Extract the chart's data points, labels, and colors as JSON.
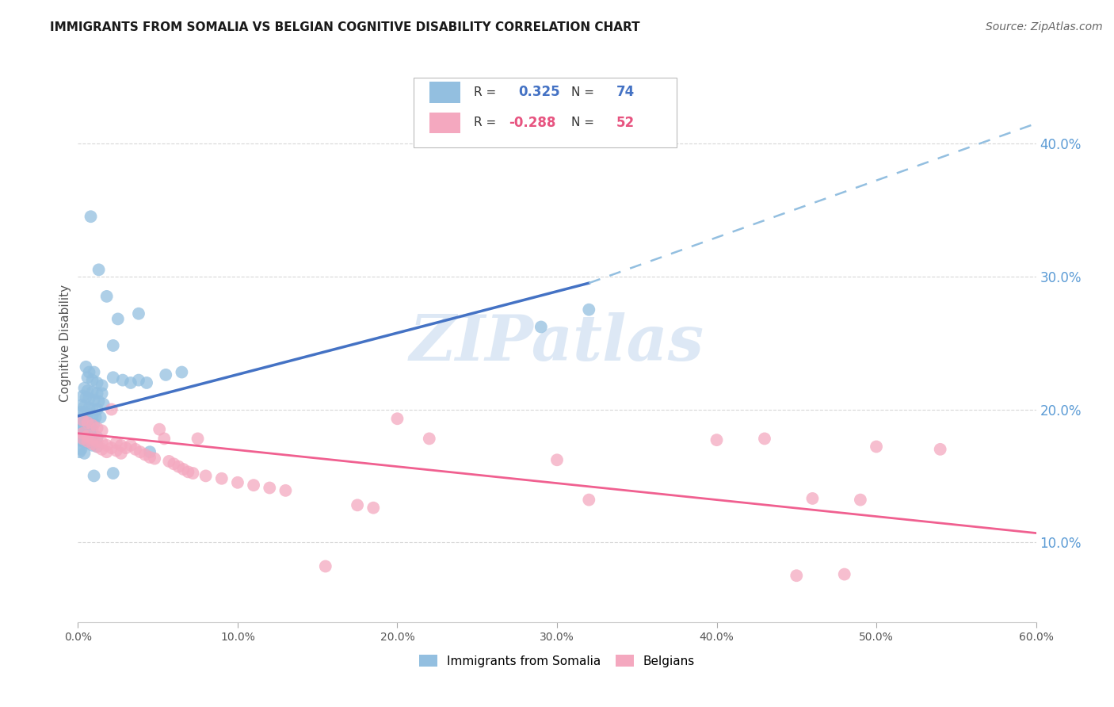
{
  "title": "IMMIGRANTS FROM SOMALIA VS BELGIAN COGNITIVE DISABILITY CORRELATION CHART",
  "source": "Source: ZipAtlas.com",
  "ylabel": "Cognitive Disability",
  "right_yticks": [
    "10.0%",
    "20.0%",
    "30.0%",
    "40.0%"
  ],
  "right_ytick_vals": [
    0.1,
    0.2,
    0.3,
    0.4
  ],
  "xlim": [
    0.0,
    0.6
  ],
  "ylim": [
    0.04,
    0.46
  ],
  "background_color": "#ffffff",
  "grid_color": "#d8d8d8",
  "somalia_dot_color": "#93bfe0",
  "belgian_dot_color": "#f4a8bf",
  "line_blue_solid": "#4472c4",
  "line_blue_dashed": "#93bfe0",
  "line_pink": "#f06090",
  "somalia_line": {
    "x0": 0.0,
    "y0": 0.195,
    "x1": 0.32,
    "y1": 0.295
  },
  "somalia_line_dashed": {
    "x0": 0.32,
    "y0": 0.295,
    "x1": 0.6,
    "y1": 0.415
  },
  "belgian_line": {
    "x0": 0.0,
    "y0": 0.182,
    "x1": 0.6,
    "y1": 0.107
  },
  "somalia_dots": [
    [
      0.008,
      0.345
    ],
    [
      0.013,
      0.305
    ],
    [
      0.018,
      0.285
    ],
    [
      0.022,
      0.248
    ],
    [
      0.005,
      0.232
    ],
    [
      0.007,
      0.228
    ],
    [
      0.01,
      0.228
    ],
    [
      0.006,
      0.224
    ],
    [
      0.009,
      0.222
    ],
    [
      0.012,
      0.22
    ],
    [
      0.015,
      0.218
    ],
    [
      0.004,
      0.216
    ],
    [
      0.006,
      0.214
    ],
    [
      0.009,
      0.213
    ],
    [
      0.012,
      0.212
    ],
    [
      0.015,
      0.212
    ],
    [
      0.003,
      0.21
    ],
    [
      0.005,
      0.209
    ],
    [
      0.007,
      0.208
    ],
    [
      0.01,
      0.207
    ],
    [
      0.013,
      0.206
    ],
    [
      0.016,
      0.204
    ],
    [
      0.002,
      0.203
    ],
    [
      0.004,
      0.202
    ],
    [
      0.007,
      0.201
    ],
    [
      0.009,
      0.2
    ],
    [
      0.012,
      0.2
    ],
    [
      0.002,
      0.198
    ],
    [
      0.004,
      0.197
    ],
    [
      0.006,
      0.196
    ],
    [
      0.009,
      0.195
    ],
    [
      0.011,
      0.194
    ],
    [
      0.014,
      0.194
    ],
    [
      0.002,
      0.192
    ],
    [
      0.004,
      0.191
    ],
    [
      0.007,
      0.19
    ],
    [
      0.01,
      0.189
    ],
    [
      0.001,
      0.188
    ],
    [
      0.003,
      0.187
    ],
    [
      0.006,
      0.186
    ],
    [
      0.009,
      0.185
    ],
    [
      0.001,
      0.183
    ],
    [
      0.003,
      0.182
    ],
    [
      0.006,
      0.181
    ],
    [
      0.009,
      0.18
    ],
    [
      0.012,
      0.179
    ],
    [
      0.001,
      0.177
    ],
    [
      0.003,
      0.176
    ],
    [
      0.006,
      0.175
    ],
    [
      0.009,
      0.173
    ],
    [
      0.012,
      0.172
    ],
    [
      0.002,
      0.17
    ],
    [
      0.001,
      0.168
    ],
    [
      0.004,
      0.167
    ],
    [
      0.022,
      0.224
    ],
    [
      0.028,
      0.222
    ],
    [
      0.033,
      0.22
    ],
    [
      0.038,
      0.222
    ],
    [
      0.043,
      0.22
    ],
    [
      0.055,
      0.226
    ],
    [
      0.065,
      0.228
    ],
    [
      0.025,
      0.268
    ],
    [
      0.038,
      0.272
    ],
    [
      0.022,
      0.152
    ],
    [
      0.01,
      0.15
    ],
    [
      0.29,
      0.262
    ],
    [
      0.32,
      0.275
    ],
    [
      0.045,
      0.168
    ]
  ],
  "belgian_dots": [
    [
      0.003,
      0.192
    ],
    [
      0.006,
      0.19
    ],
    [
      0.009,
      0.188
    ],
    [
      0.012,
      0.186
    ],
    [
      0.015,
      0.184
    ],
    [
      0.003,
      0.182
    ],
    [
      0.006,
      0.18
    ],
    [
      0.009,
      0.178
    ],
    [
      0.012,
      0.176
    ],
    [
      0.015,
      0.175
    ],
    [
      0.018,
      0.173
    ],
    [
      0.021,
      0.171
    ],
    [
      0.024,
      0.169
    ],
    [
      0.027,
      0.167
    ],
    [
      0.003,
      0.178
    ],
    [
      0.006,
      0.176
    ],
    [
      0.009,
      0.174
    ],
    [
      0.012,
      0.172
    ],
    [
      0.015,
      0.17
    ],
    [
      0.018,
      0.168
    ],
    [
      0.021,
      0.2
    ],
    [
      0.024,
      0.175
    ],
    [
      0.027,
      0.173
    ],
    [
      0.03,
      0.171
    ],
    [
      0.033,
      0.173
    ],
    [
      0.036,
      0.17
    ],
    [
      0.039,
      0.168
    ],
    [
      0.042,
      0.166
    ],
    [
      0.045,
      0.164
    ],
    [
      0.048,
      0.163
    ],
    [
      0.051,
      0.185
    ],
    [
      0.054,
      0.178
    ],
    [
      0.057,
      0.161
    ],
    [
      0.06,
      0.159
    ],
    [
      0.063,
      0.157
    ],
    [
      0.066,
      0.155
    ],
    [
      0.069,
      0.153
    ],
    [
      0.072,
      0.152
    ],
    [
      0.075,
      0.178
    ],
    [
      0.08,
      0.15
    ],
    [
      0.09,
      0.148
    ],
    [
      0.1,
      0.145
    ],
    [
      0.11,
      0.143
    ],
    [
      0.12,
      0.141
    ],
    [
      0.13,
      0.139
    ],
    [
      0.155,
      0.082
    ],
    [
      0.175,
      0.128
    ],
    [
      0.185,
      0.126
    ],
    [
      0.2,
      0.193
    ],
    [
      0.22,
      0.178
    ],
    [
      0.3,
      0.162
    ],
    [
      0.32,
      0.132
    ],
    [
      0.4,
      0.177
    ],
    [
      0.43,
      0.178
    ],
    [
      0.46,
      0.133
    ],
    [
      0.49,
      0.132
    ],
    [
      0.5,
      0.172
    ],
    [
      0.54,
      0.17
    ],
    [
      0.45,
      0.075
    ],
    [
      0.48,
      0.076
    ]
  ]
}
